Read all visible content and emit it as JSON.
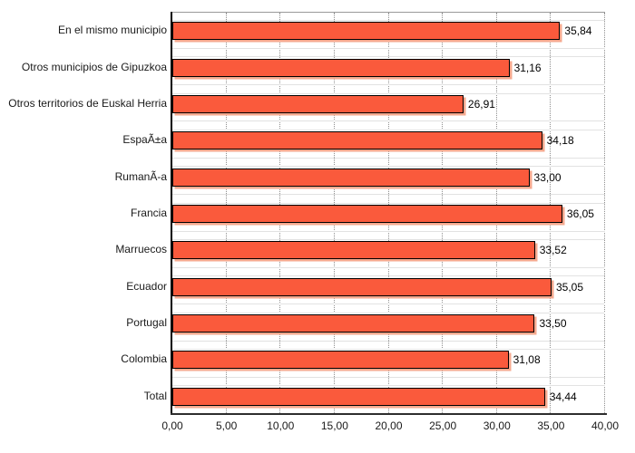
{
  "chart_data": {
    "type": "bar",
    "orientation": "horizontal",
    "title": "",
    "xlabel": "",
    "ylabel": "",
    "categories": [
      "En el mismo municipio",
      "Otros municipios de Gipuzkoa",
      "Otros territorios de Euskal Herria",
      "EspaÃ±a",
      "RumanÃ-a",
      "Francia",
      "Marruecos",
      "Ecuador",
      "Portugal",
      "Colombia",
      "Total"
    ],
    "values": [
      35.84,
      31.16,
      26.91,
      34.18,
      33.0,
      36.05,
      33.52,
      35.05,
      33.5,
      31.08,
      34.44
    ],
    "value_labels": [
      "35,84",
      "31,16",
      "26,91",
      "34,18",
      "33,00",
      "36,05",
      "33,52",
      "35,05",
      "33,50",
      "31,08",
      "34,44"
    ],
    "xlim": [
      0,
      40
    ],
    "x_ticks": [
      0,
      5,
      10,
      15,
      20,
      25,
      30,
      35,
      40
    ],
    "x_tick_labels": [
      "0,00",
      "5,00",
      "10,00",
      "15,00",
      "20,00",
      "25,00",
      "30,00",
      "35,00",
      "40,00"
    ],
    "grid": "vertical-dotted",
    "legend": "none",
    "colors": {
      "bar_fill": "#FA5A3C",
      "bar_border": "#000000",
      "bar_shadow": "#F5A98F",
      "gridline": "#8f8f8f",
      "row_separator": "#e2e2e2",
      "y_axis_line": "#000000",
      "x_axis_line": "#2e2e2e",
      "plot_top_border": "#9a9a9a",
      "label_text": "#1a1a1a"
    }
  }
}
